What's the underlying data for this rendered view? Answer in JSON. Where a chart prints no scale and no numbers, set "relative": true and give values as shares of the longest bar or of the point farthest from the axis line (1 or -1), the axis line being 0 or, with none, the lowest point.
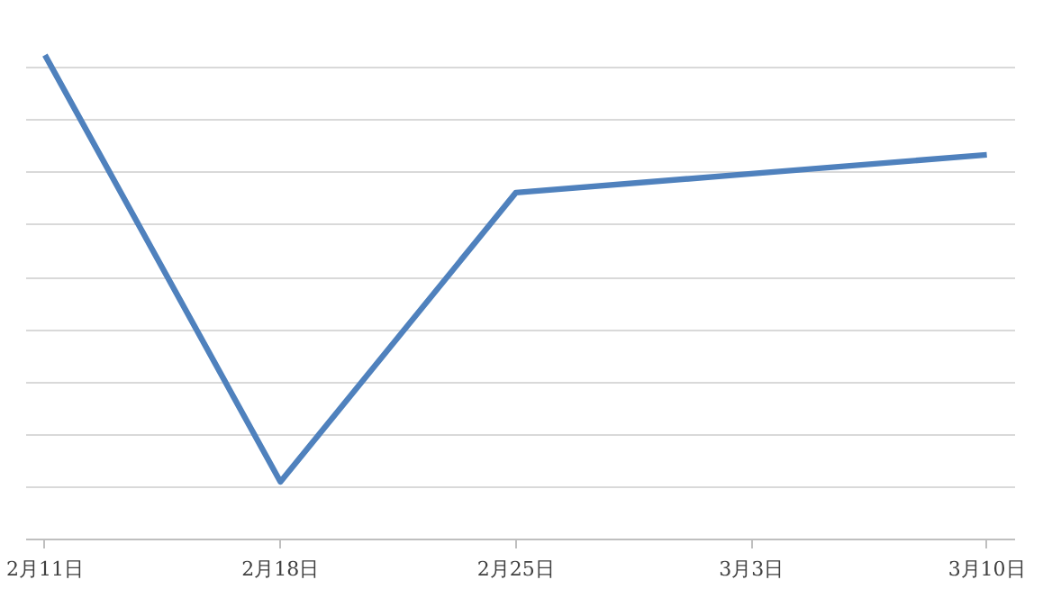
{
  "chart_data": {
    "type": "line",
    "relative": true,
    "categories": [
      "2月11日",
      "2月18日",
      "2月25日",
      "3月3日",
      "3月10日"
    ],
    "series": [
      {
        "color": "#4f81bd",
        "values": [
          1,
          0.119,
          0.716,
          0.755,
          0.794
        ]
      }
    ],
    "grid": "y",
    "marker": "none",
    "line_style": "solid"
  }
}
